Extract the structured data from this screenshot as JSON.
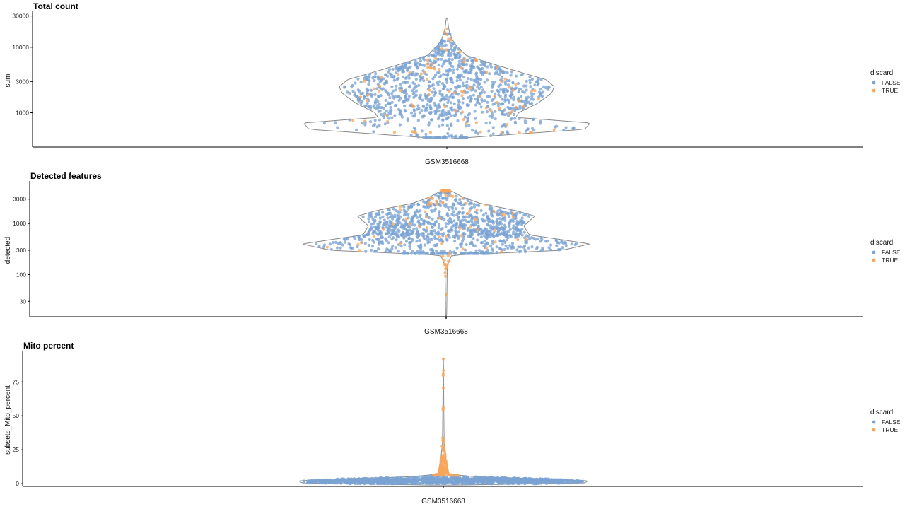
{
  "colors": {
    "false": "#7aa3d4",
    "true": "#f9a55a",
    "outline": "#888888",
    "axis": "#000000"
  },
  "legend": {
    "title": "discard",
    "items": [
      "FALSE",
      "TRUE"
    ],
    "placement": "right"
  },
  "chart_data": [
    {
      "type": "violin",
      "title": "Total count",
      "ylabel": "sum",
      "xlabel": "",
      "category": "GSM3516668",
      "scale": "log10",
      "yticks": [
        1000,
        3000,
        10000,
        30000
      ],
      "ytick_labels": [
        "1000",
        "3000",
        "10000",
        "30000"
      ],
      "ylim": [
        300,
        32000
      ],
      "profile": [
        [
          400,
          0.01
        ],
        [
          560,
          0.5
        ],
        [
          700,
          0.52
        ],
        [
          850,
          0.25
        ],
        [
          1000,
          0.26
        ],
        [
          1400,
          0.33
        ],
        [
          2000,
          0.38
        ],
        [
          2500,
          0.39
        ],
        [
          3200,
          0.36
        ],
        [
          4000,
          0.28
        ],
        [
          5500,
          0.17
        ],
        [
          7500,
          0.07
        ],
        [
          10500,
          0.035
        ],
        [
          13000,
          0.02
        ],
        [
          17000,
          0.01
        ],
        [
          20000,
          0.006
        ],
        [
          26000,
          0.003
        ],
        [
          28000,
          0.001
        ]
      ],
      "series": [
        {
          "name": "FALSE",
          "n": 1050,
          "distribution": "lognormal",
          "center": 2100,
          "spread": 0.38,
          "min": 420,
          "max": 16000
        },
        {
          "name": "TRUE",
          "n": 90,
          "distribution": "lognormal",
          "center": 2400,
          "spread": 0.42,
          "min": 500,
          "max": 28000
        }
      ]
    },
    {
      "type": "violin",
      "title": "Detected features",
      "ylabel": "detected",
      "xlabel": "",
      "category": "GSM3516668",
      "scale": "log10",
      "yticks": [
        30,
        100,
        300,
        1000,
        3000
      ],
      "ytick_labels": [
        "30",
        "100",
        "300",
        "1000",
        "3000"
      ],
      "ylim": [
        15,
        6000
      ],
      "profile": [
        [
          14,
          0.001
        ],
        [
          18,
          0.002
        ],
        [
          60,
          0.003
        ],
        [
          150,
          0.004
        ],
        [
          240,
          0.02
        ],
        [
          300,
          0.42
        ],
        [
          400,
          0.52
        ],
        [
          600,
          0.3
        ],
        [
          900,
          0.28
        ],
        [
          1400,
          0.32
        ],
        [
          1800,
          0.25
        ],
        [
          2500,
          0.12
        ],
        [
          3300,
          0.06
        ],
        [
          4300,
          0.02
        ],
        [
          4700,
          0.001
        ]
      ],
      "series": [
        {
          "name": "FALSE",
          "n": 1050,
          "distribution": "lognormal",
          "center": 750,
          "spread": 0.3,
          "min": 260,
          "max": 4000
        },
        {
          "name": "TRUE",
          "n": 90,
          "distribution": "lognormal",
          "center": 1200,
          "spread": 0.55,
          "min": 18,
          "max": 4400
        }
      ]
    },
    {
      "type": "violin",
      "title": "Mito percent",
      "ylabel": "subsets_Mito_percent",
      "xlabel": "",
      "category": "GSM3516668",
      "scale": "linear",
      "yticks": [
        0,
        25,
        50,
        75
      ],
      "ytick_labels": [
        "0",
        "25",
        "50",
        "75"
      ],
      "ylim": [
        -2,
        96
      ],
      "profile": [
        [
          -1,
          0.05
        ],
        [
          0.5,
          0.5
        ],
        [
          2,
          0.52
        ],
        [
          3.5,
          0.38
        ],
        [
          5,
          0.12
        ],
        [
          7,
          0.02
        ],
        [
          10,
          0.015
        ],
        [
          15,
          0.012
        ],
        [
          20,
          0.008
        ],
        [
          30,
          0.003
        ],
        [
          50,
          0.002
        ],
        [
          75,
          0.001
        ],
        [
          92,
          0.0005
        ]
      ],
      "series": [
        {
          "name": "FALSE",
          "n": 1300,
          "distribution": "normal",
          "center": 2.2,
          "spread": 1.2,
          "min": 0,
          "max": 6.5
        },
        {
          "name": "TRUE",
          "n": 160,
          "distribution": "exponential",
          "center": 8,
          "spread": 6,
          "min": 6,
          "max": 92
        }
      ]
    }
  ]
}
